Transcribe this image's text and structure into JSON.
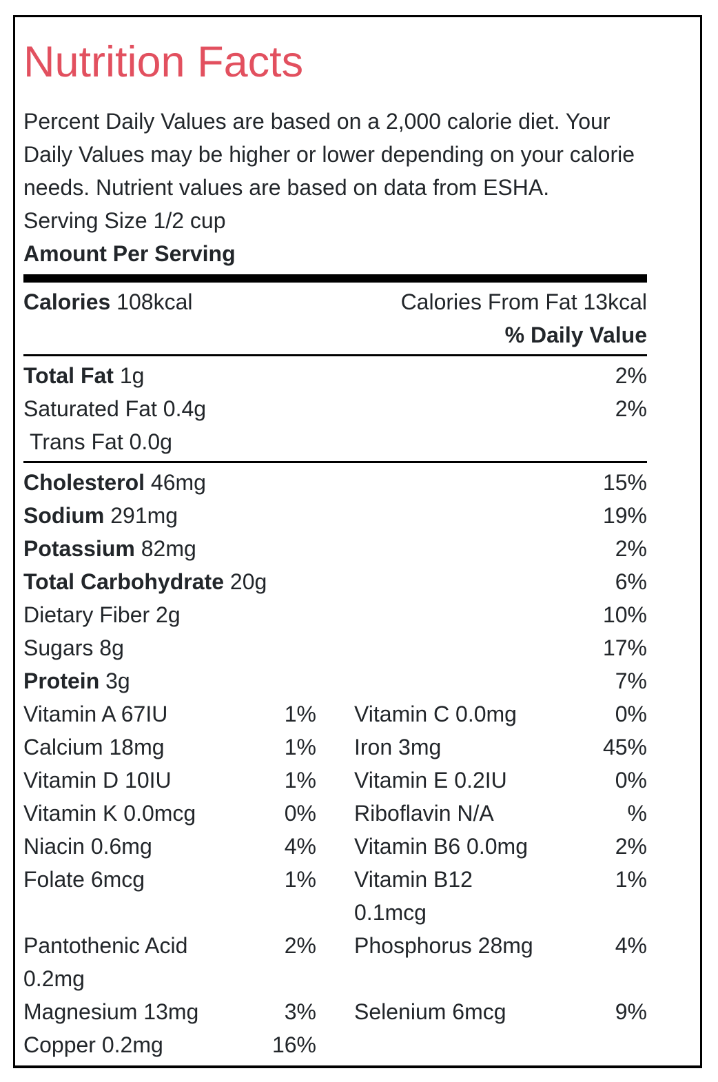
{
  "colors": {
    "title_accent": "#e2505f",
    "text": "#22262a",
    "border": "#000000"
  },
  "header": {
    "title": "Nutrition Facts",
    "intro": "Percent Daily Values are based on a 2,000 calorie diet. Your Daily Values may be higher or lower depending on your calorie needs. Nutrient values are based on data from ESHA.",
    "serving_size": "Serving Size 1/2 cup",
    "amount_per_serving": "Amount Per Serving"
  },
  "calories": {
    "label": "Calories",
    "value": "108kcal",
    "from_fat": "Calories From Fat 13kcal"
  },
  "daily_value_header": "% Daily Value",
  "main_rows": [
    {
      "label": "Total Fat",
      "amount": "1g",
      "dv": "2%"
    },
    {
      "label": "Saturated Fat",
      "amount": "0.4g",
      "dv": "2%"
    },
    {
      "label": "Trans Fat",
      "amount": "0.0g",
      "dv": ""
    },
    {
      "label": "Cholesterol",
      "amount": "46mg",
      "dv": "15%"
    },
    {
      "label": "Sodium",
      "amount": "291mg",
      "dv": "19%"
    },
    {
      "label": "Potassium",
      "amount": "82mg",
      "dv": "2%"
    },
    {
      "label": "Total Carbohydrate",
      "amount": "20g",
      "dv": "6%"
    },
    {
      "label": "Dietary Fiber",
      "amount": "2g",
      "dv": "10%"
    },
    {
      "label": "Sugars",
      "amount": "8g",
      "dv": "17%"
    },
    {
      "label": "Protein",
      "amount": "3g",
      "dv": "7%"
    }
  ],
  "micro_rows": [
    {
      "left": {
        "name": "Vitamin A 67IU",
        "dv": "1%"
      },
      "right": {
        "name": "Vitamin C 0.0mg",
        "dv": "0%"
      }
    },
    {
      "left": {
        "name": "Calcium 18mg",
        "dv": "1%"
      },
      "right": {
        "name": "Iron 3mg",
        "dv": "45%"
      }
    },
    {
      "left": {
        "name": "Vitamin D 10IU",
        "dv": "1%"
      },
      "right": {
        "name": "Vitamin E 0.2IU",
        "dv": "0%"
      }
    },
    {
      "left": {
        "name": "Vitamin K 0.0mcg",
        "dv": "0%"
      },
      "right": {
        "name": "Riboflavin N/A",
        "dv": "%"
      }
    },
    {
      "left": {
        "name": "Niacin 0.6mg",
        "dv": "4%"
      },
      "right": {
        "name": "Vitamin B6 0.0mg",
        "dv": "2%"
      }
    },
    {
      "left": {
        "name": "Folate 6mcg",
        "dv": "1%"
      },
      "right": {
        "name": "Vitamin B12 0.1mcg",
        "dv": "1%"
      }
    },
    {
      "left": {
        "name": "Pantothenic Acid 0.2mg",
        "dv": "2%"
      },
      "right": {
        "name": "Phosphorus 28mg",
        "dv": "4%"
      }
    },
    {
      "left": {
        "name": "Magnesium 13mg",
        "dv": "3%"
      },
      "right": {
        "name": "Selenium 6mcg",
        "dv": "9%"
      }
    },
    {
      "left": {
        "name": "Copper 0.2mg",
        "dv": "16%"
      },
      "right": {
        "name": "",
        "dv": ""
      }
    }
  ]
}
